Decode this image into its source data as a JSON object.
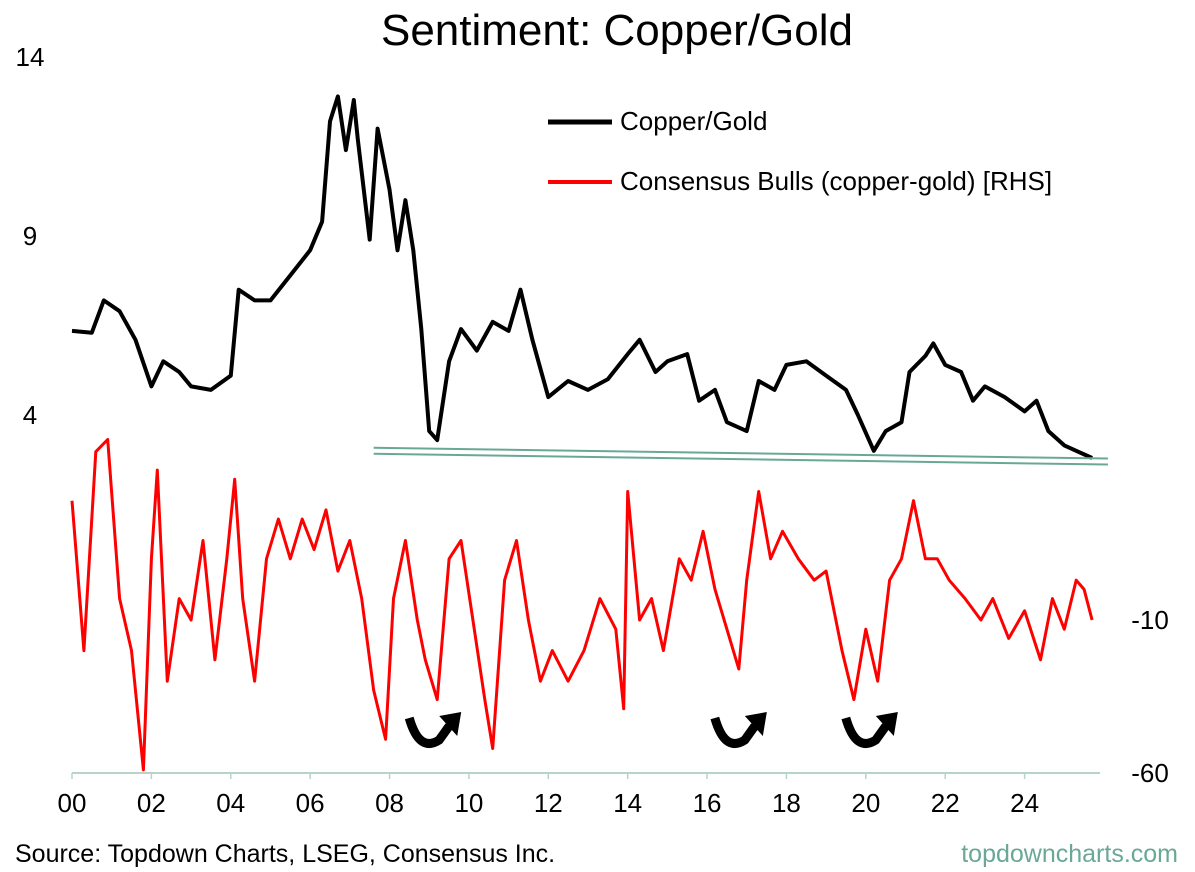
{
  "chart_data": {
    "type": "line",
    "title": "Sentiment: Copper/Gold",
    "xlabel": "",
    "x_range": [
      2000,
      2025.9
    ],
    "x_ticks": [
      "00",
      "02",
      "04",
      "06",
      "08",
      "10",
      "12",
      "14",
      "16",
      "18",
      "20",
      "22",
      "24"
    ],
    "left_axis": {
      "ylim": [
        -6,
        14
      ],
      "ticks": [
        14,
        9,
        4
      ]
    },
    "right_axis": {
      "ylim": [
        -60,
        174
      ],
      "ticks": [
        -10,
        -60
      ]
    },
    "grid": false,
    "legend_position": "top-right",
    "series": [
      {
        "name": "Copper/Gold",
        "axis": "left",
        "color": "#000000",
        "points": [
          [
            2000.0,
            6.35
          ],
          [
            2000.5,
            6.3
          ],
          [
            2000.8,
            7.2
          ],
          [
            2001.2,
            6.9
          ],
          [
            2001.6,
            6.1
          ],
          [
            2002.0,
            4.8
          ],
          [
            2002.3,
            5.5
          ],
          [
            2002.7,
            5.2
          ],
          [
            2003.0,
            4.8
          ],
          [
            2003.5,
            4.7
          ],
          [
            2004.0,
            5.1
          ],
          [
            2004.2,
            7.5
          ],
          [
            2004.6,
            7.2
          ],
          [
            2005.0,
            7.2
          ],
          [
            2005.5,
            7.9
          ],
          [
            2006.0,
            8.6
          ],
          [
            2006.3,
            9.4
          ],
          [
            2006.5,
            12.2
          ],
          [
            2006.7,
            12.9
          ],
          [
            2006.9,
            11.4
          ],
          [
            2007.1,
            12.8
          ],
          [
            2007.2,
            11.7
          ],
          [
            2007.5,
            8.9
          ],
          [
            2007.7,
            12.0
          ],
          [
            2008.0,
            10.3
          ],
          [
            2008.2,
            8.6
          ],
          [
            2008.4,
            10.0
          ],
          [
            2008.6,
            8.6
          ],
          [
            2008.8,
            6.4
          ],
          [
            2009.0,
            3.55
          ],
          [
            2009.2,
            3.3
          ],
          [
            2009.5,
            5.5
          ],
          [
            2009.8,
            6.4
          ],
          [
            2010.2,
            5.8
          ],
          [
            2010.6,
            6.6
          ],
          [
            2011.0,
            6.35
          ],
          [
            2011.3,
            7.5
          ],
          [
            2011.6,
            6.1
          ],
          [
            2012.0,
            4.5
          ],
          [
            2012.5,
            4.95
          ],
          [
            2013.0,
            4.7
          ],
          [
            2013.5,
            5.0
          ],
          [
            2014.0,
            5.7
          ],
          [
            2014.3,
            6.1
          ],
          [
            2014.7,
            5.2
          ],
          [
            2015.0,
            5.5
          ],
          [
            2015.5,
            5.7
          ],
          [
            2015.8,
            4.4
          ],
          [
            2016.2,
            4.7
          ],
          [
            2016.5,
            3.8
          ],
          [
            2017.0,
            3.55
          ],
          [
            2017.3,
            4.95
          ],
          [
            2017.7,
            4.7
          ],
          [
            2018.0,
            5.4
          ],
          [
            2018.5,
            5.5
          ],
          [
            2019.0,
            5.1
          ],
          [
            2019.5,
            4.7
          ],
          [
            2019.8,
            4.0
          ],
          [
            2020.2,
            3.0
          ],
          [
            2020.5,
            3.55
          ],
          [
            2020.9,
            3.8
          ],
          [
            2021.1,
            5.2
          ],
          [
            2021.5,
            5.65
          ],
          [
            2021.7,
            6.0
          ],
          [
            2022.0,
            5.4
          ],
          [
            2022.4,
            5.2
          ],
          [
            2022.7,
            4.4
          ],
          [
            2023.0,
            4.8
          ],
          [
            2023.5,
            4.5
          ],
          [
            2024.0,
            4.1
          ],
          [
            2024.3,
            4.4
          ],
          [
            2024.6,
            3.55
          ],
          [
            2025.0,
            3.15
          ],
          [
            2025.3,
            3.0
          ],
          [
            2025.7,
            2.8
          ]
        ]
      },
      {
        "name": "Consensus Bulls (copper-gold) [RHS]",
        "axis": "right",
        "color": "#ff0000",
        "points": [
          [
            2000.0,
            29
          ],
          [
            2000.3,
            -20
          ],
          [
            2000.6,
            45
          ],
          [
            2000.9,
            49
          ],
          [
            2001.2,
            -3
          ],
          [
            2001.5,
            -20
          ],
          [
            2001.8,
            -59
          ],
          [
            2002.0,
            10
          ],
          [
            2002.15,
            39
          ],
          [
            2002.4,
            -30
          ],
          [
            2002.7,
            -3
          ],
          [
            2003.0,
            -10
          ],
          [
            2003.3,
            16
          ],
          [
            2003.6,
            -23
          ],
          [
            2003.9,
            10
          ],
          [
            2004.1,
            36
          ],
          [
            2004.3,
            -3
          ],
          [
            2004.6,
            -30
          ],
          [
            2004.9,
            10
          ],
          [
            2005.2,
            23
          ],
          [
            2005.5,
            10
          ],
          [
            2005.8,
            23
          ],
          [
            2006.1,
            13
          ],
          [
            2006.4,
            26
          ],
          [
            2006.7,
            6
          ],
          [
            2007.0,
            16
          ],
          [
            2007.3,
            -3
          ],
          [
            2007.6,
            -33
          ],
          [
            2007.9,
            -49
          ],
          [
            2008.1,
            -3
          ],
          [
            2008.4,
            16
          ],
          [
            2008.7,
            -10
          ],
          [
            2008.9,
            -23
          ],
          [
            2009.2,
            -36
          ],
          [
            2009.5,
            10
          ],
          [
            2009.8,
            16
          ],
          [
            2010.1,
            -10
          ],
          [
            2010.4,
            -36
          ],
          [
            2010.6,
            -52
          ],
          [
            2010.9,
            3
          ],
          [
            2011.2,
            16
          ],
          [
            2011.5,
            -10
          ],
          [
            2011.8,
            -30
          ],
          [
            2012.1,
            -20
          ],
          [
            2012.5,
            -30
          ],
          [
            2012.9,
            -20
          ],
          [
            2013.3,
            -3
          ],
          [
            2013.7,
            -13
          ],
          [
            2013.9,
            -39
          ],
          [
            2014.0,
            32
          ],
          [
            2014.3,
            -10
          ],
          [
            2014.6,
            -3
          ],
          [
            2014.9,
            -20
          ],
          [
            2015.3,
            10
          ],
          [
            2015.6,
            3
          ],
          [
            2015.9,
            19
          ],
          [
            2016.2,
            0
          ],
          [
            2016.5,
            -13
          ],
          [
            2016.8,
            -26
          ],
          [
            2017.0,
            3
          ],
          [
            2017.3,
            32
          ],
          [
            2017.6,
            10
          ],
          [
            2017.9,
            19
          ],
          [
            2018.3,
            10
          ],
          [
            2018.7,
            3
          ],
          [
            2019.0,
            6
          ],
          [
            2019.4,
            -20
          ],
          [
            2019.7,
            -36
          ],
          [
            2020.0,
            -13
          ],
          [
            2020.3,
            -30
          ],
          [
            2020.6,
            3
          ],
          [
            2020.9,
            10
          ],
          [
            2021.2,
            29
          ],
          [
            2021.5,
            10
          ],
          [
            2021.8,
            10
          ],
          [
            2022.1,
            3
          ],
          [
            2022.5,
            -3
          ],
          [
            2022.9,
            -10
          ],
          [
            2023.2,
            -3
          ],
          [
            2023.6,
            -16
          ],
          [
            2024.0,
            -7
          ],
          [
            2024.4,
            -23
          ],
          [
            2024.7,
            -3
          ],
          [
            2025.0,
            -13
          ],
          [
            2025.3,
            3
          ],
          [
            2025.5,
            0
          ],
          [
            2025.7,
            -10
          ]
        ]
      }
    ],
    "annotations": {
      "trendline": {
        "axis": "left",
        "color": "#6aa896",
        "from": [
          2007.6,
          3.0
        ],
        "to": [
          2026.1,
          2.7
        ]
      },
      "turn_arrows_at": [
        2009.0,
        2016.7,
        2020.0
      ]
    },
    "source": "Source: Topdown Charts, LSEG, Consensus Inc.",
    "brand": "topdowncharts.com"
  }
}
